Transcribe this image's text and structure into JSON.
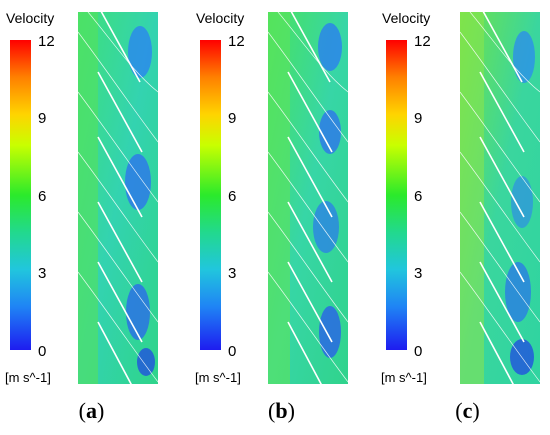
{
  "figure": {
    "panels": [
      {
        "id": "a",
        "legend": {
          "title": "Velocity",
          "ticks": [
            "12",
            "9",
            "6",
            "3",
            "0"
          ],
          "unit": "[m s^-1]"
        },
        "caption_letter": "a"
      },
      {
        "id": "b",
        "legend": {
          "title": "Velocity",
          "ticks": [
            "12",
            "9",
            "6",
            "3",
            "0"
          ],
          "unit": "[m s^-1]"
        },
        "caption_letter": "b"
      },
      {
        "id": "c",
        "legend": {
          "title": "Velocity",
          "ticks": [
            "12",
            "9",
            "6",
            "3",
            "0"
          ],
          "unit": "[m s^-1]"
        },
        "caption_letter": "c"
      }
    ]
  }
}
